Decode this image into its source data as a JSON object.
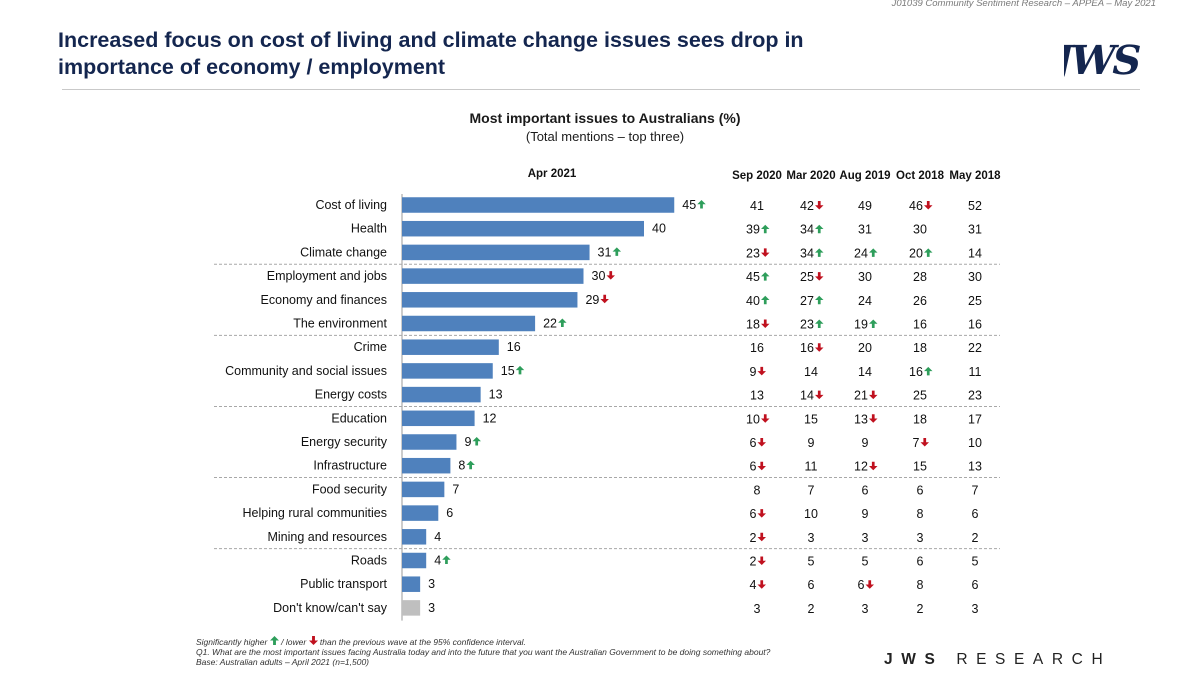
{
  "header": {
    "reference": "J01039 Community Sentiment Research – APPEA – May 2021",
    "title_line1": "Increased focus on cost of living and climate change issues sees drop in",
    "title_line2": "importance of economy / employment",
    "logo_text": "JWS"
  },
  "colors": {
    "bar": "#4f81bd",
    "bar_dk": "#bfbfbf",
    "up": "#2e9e5b",
    "down": "#c0111f",
    "title": "#14264f"
  },
  "chart_data": {
    "type": "bar",
    "orientation": "horizontal",
    "title": "Most important issues to Australians (%)",
    "subtitle": "(Total mentions – top three)",
    "current_label": "Apr 2021",
    "xlim": [
      0,
      50
    ],
    "categories": [
      "Cost of living",
      "Health",
      "Climate change",
      "Employment and jobs",
      "Economy and finances",
      "The environment",
      "Crime",
      "Community and social issues",
      "Energy costs",
      "Education",
      "Energy security",
      "Infrastructure",
      "Food security",
      "Helping rural communities",
      "Mining and resources",
      "Roads",
      "Public transport",
      "Don't know/can't say"
    ],
    "values": [
      45,
      40,
      31,
      30,
      29,
      22,
      16,
      15,
      13,
      12,
      9,
      8,
      7,
      6,
      4,
      4,
      3,
      3
    ],
    "value_sig": [
      "up",
      "",
      "up",
      "down",
      "down",
      "up",
      "",
      "up",
      "",
      "",
      "up",
      "up",
      "",
      "",
      "",
      "up",
      "",
      ""
    ],
    "group_breaks_after": [
      2,
      5,
      8,
      11,
      14
    ],
    "history_columns": [
      "Sep 2020",
      "Mar 2020",
      "Aug 2019",
      "Oct 2018",
      "May 2018"
    ],
    "history": [
      [
        41,
        42,
        49,
        46,
        52
      ],
      [
        39,
        34,
        31,
        30,
        31
      ],
      [
        23,
        34,
        24,
        20,
        14
      ],
      [
        45,
        25,
        30,
        28,
        30
      ],
      [
        40,
        27,
        24,
        26,
        25
      ],
      [
        18,
        23,
        19,
        16,
        16
      ],
      [
        16,
        16,
        20,
        18,
        22
      ],
      [
        9,
        14,
        14,
        16,
        11
      ],
      [
        13,
        14,
        21,
        25,
        23
      ],
      [
        10,
        15,
        13,
        18,
        17
      ],
      [
        6,
        9,
        9,
        7,
        10
      ],
      [
        6,
        11,
        12,
        15,
        13
      ],
      [
        8,
        7,
        6,
        6,
        7
      ],
      [
        6,
        10,
        9,
        8,
        6
      ],
      [
        2,
        3,
        3,
        3,
        2
      ],
      [
        2,
        5,
        5,
        6,
        5
      ],
      [
        4,
        6,
        6,
        8,
        6
      ],
      [
        3,
        2,
        3,
        2,
        3
      ]
    ],
    "history_sig": [
      [
        "",
        "down",
        "",
        "down",
        ""
      ],
      [
        "up",
        "up",
        "",
        "",
        ""
      ],
      [
        "down",
        "up",
        "up",
        "up",
        ""
      ],
      [
        "up",
        "down",
        "",
        "",
        ""
      ],
      [
        "up",
        "up",
        "",
        "",
        ""
      ],
      [
        "down",
        "up",
        "up",
        "",
        ""
      ],
      [
        "",
        "down",
        "",
        "",
        ""
      ],
      [
        "down",
        "",
        "",
        "up",
        ""
      ],
      [
        "",
        "down",
        "down",
        "",
        ""
      ],
      [
        "down",
        "",
        "down",
        "",
        ""
      ],
      [
        "down",
        "",
        "",
        "down",
        ""
      ],
      [
        "down",
        "",
        "down",
        "",
        ""
      ],
      [
        "",
        "",
        "",
        "",
        ""
      ],
      [
        "down",
        "",
        "",
        "",
        ""
      ],
      [
        "down",
        "",
        "",
        "",
        ""
      ],
      [
        "down",
        "",
        "",
        "",
        ""
      ],
      [
        "down",
        "",
        "down",
        "",
        ""
      ],
      [
        "",
        "",
        "",
        "",
        ""
      ]
    ]
  },
  "footer": {
    "note_prefix": "Significantly higher",
    "note_middle": "/ lower",
    "note_suffix": "than the previous wave at the 95% confidence interval.",
    "question": "Q1. What are the most important issues facing Australia today and into the future that you want the Australian Government to be doing something about?",
    "base": "Base: Australian adults – April 2021 (n=1,500)",
    "brand_bold": "JWS",
    "brand_rest": "RESEARCH"
  }
}
